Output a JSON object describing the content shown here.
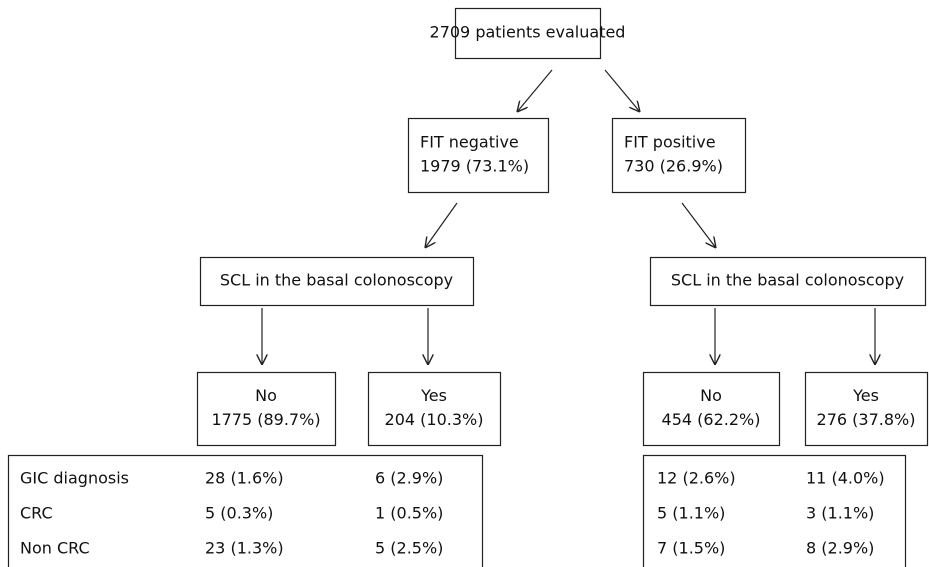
{
  "nodes": [
    {
      "lines": [
        "2709 patients evaluated"
      ]
    },
    {
      "lines": [
        "FIT negative",
        "1979 (73.1%)"
      ]
    },
    {
      "lines": [
        "FIT positive",
        "730 (26.9%)"
      ]
    },
    {
      "lines": [
        "SCL in the basal colonoscopy"
      ]
    },
    {
      "lines": [
        "SCL in the basal colonoscopy"
      ]
    },
    {
      "lines": [
        "No",
        "1775 (89.7%)"
      ]
    },
    {
      "lines": [
        "Yes",
        "204 (10.3%)"
      ]
    },
    {
      "lines": [
        "No",
        "454 (62.2%)"
      ]
    },
    {
      "lines": [
        "Yes",
        "276 (37.8%)"
      ]
    }
  ],
  "tables": [
    {
      "rows": [
        [
          "GIC diagnosis",
          "28 (1.6%)",
          "6 (2.9%)"
        ],
        [
          "CRC",
          "5 (0.3%)",
          "1 (0.5%)"
        ],
        [
          "Non CRC",
          "23 (1.3%)",
          "5 (2.5%)"
        ]
      ]
    },
    {
      "rows": [
        [
          "12 (2.6%)",
          "11 (4.0%)"
        ],
        [
          "5 (1.1%)",
          "3 (1.1%)"
        ],
        [
          "7 (1.5%)",
          "8 (2.9%)"
        ]
      ]
    }
  ]
}
